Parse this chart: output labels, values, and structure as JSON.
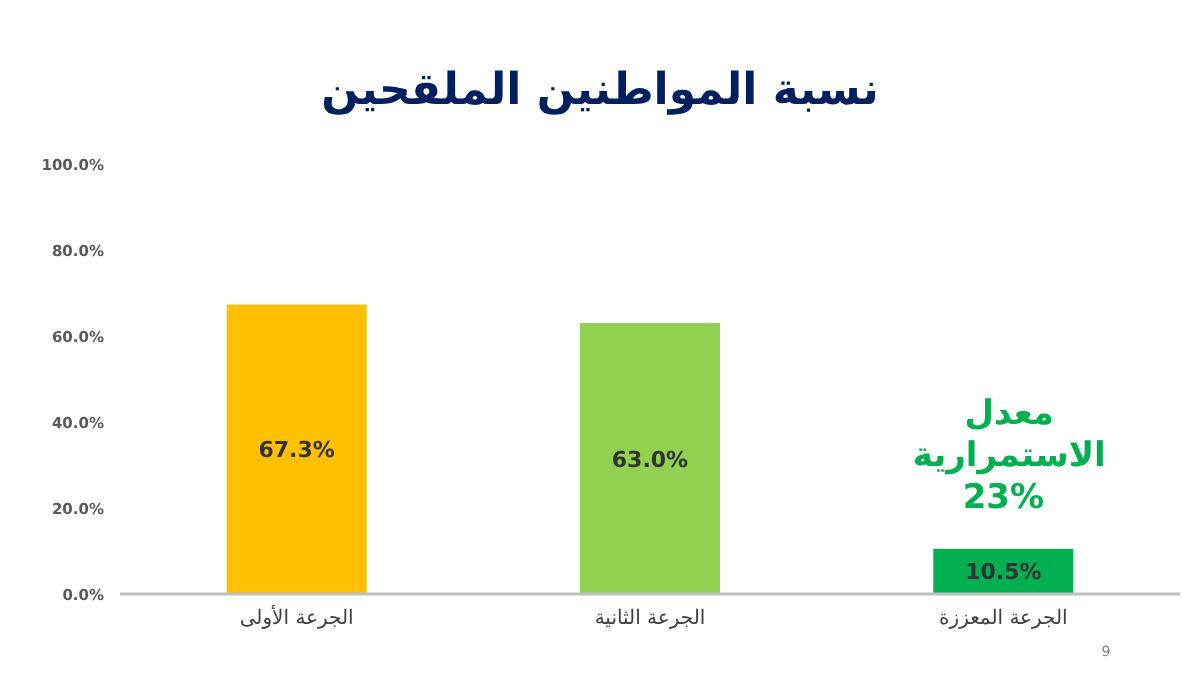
{
  "chart_data": {
    "type": "bar",
    "title": "نسبة المواطنين الملقحين",
    "categories": [
      "الجرعة الأولى",
      "الجرعة الثانية",
      "الجرعة المعززة"
    ],
    "values": [
      67.3,
      63.0,
      10.5
    ],
    "colors": [
      "#ffc000",
      "#92d050",
      "#00b050"
    ],
    "value_labels": [
      "67.3%",
      "63.0%",
      "10.5%"
    ],
    "ylim": [
      0,
      100
    ],
    "yticks": [
      {
        "value": 0,
        "label": "0.0%"
      },
      {
        "value": 20,
        "label": "20.0%"
      },
      {
        "value": 40,
        "label": "40.0%"
      },
      {
        "value": 60,
        "label": "60.0%"
      },
      {
        "value": 80,
        "label": "80.0%"
      },
      {
        "value": 100,
        "label": "100.0%"
      }
    ],
    "annotations": [
      "معدل الاستمرارية 23%",
      "9"
    ],
    "grid": false,
    "legend": false
  }
}
